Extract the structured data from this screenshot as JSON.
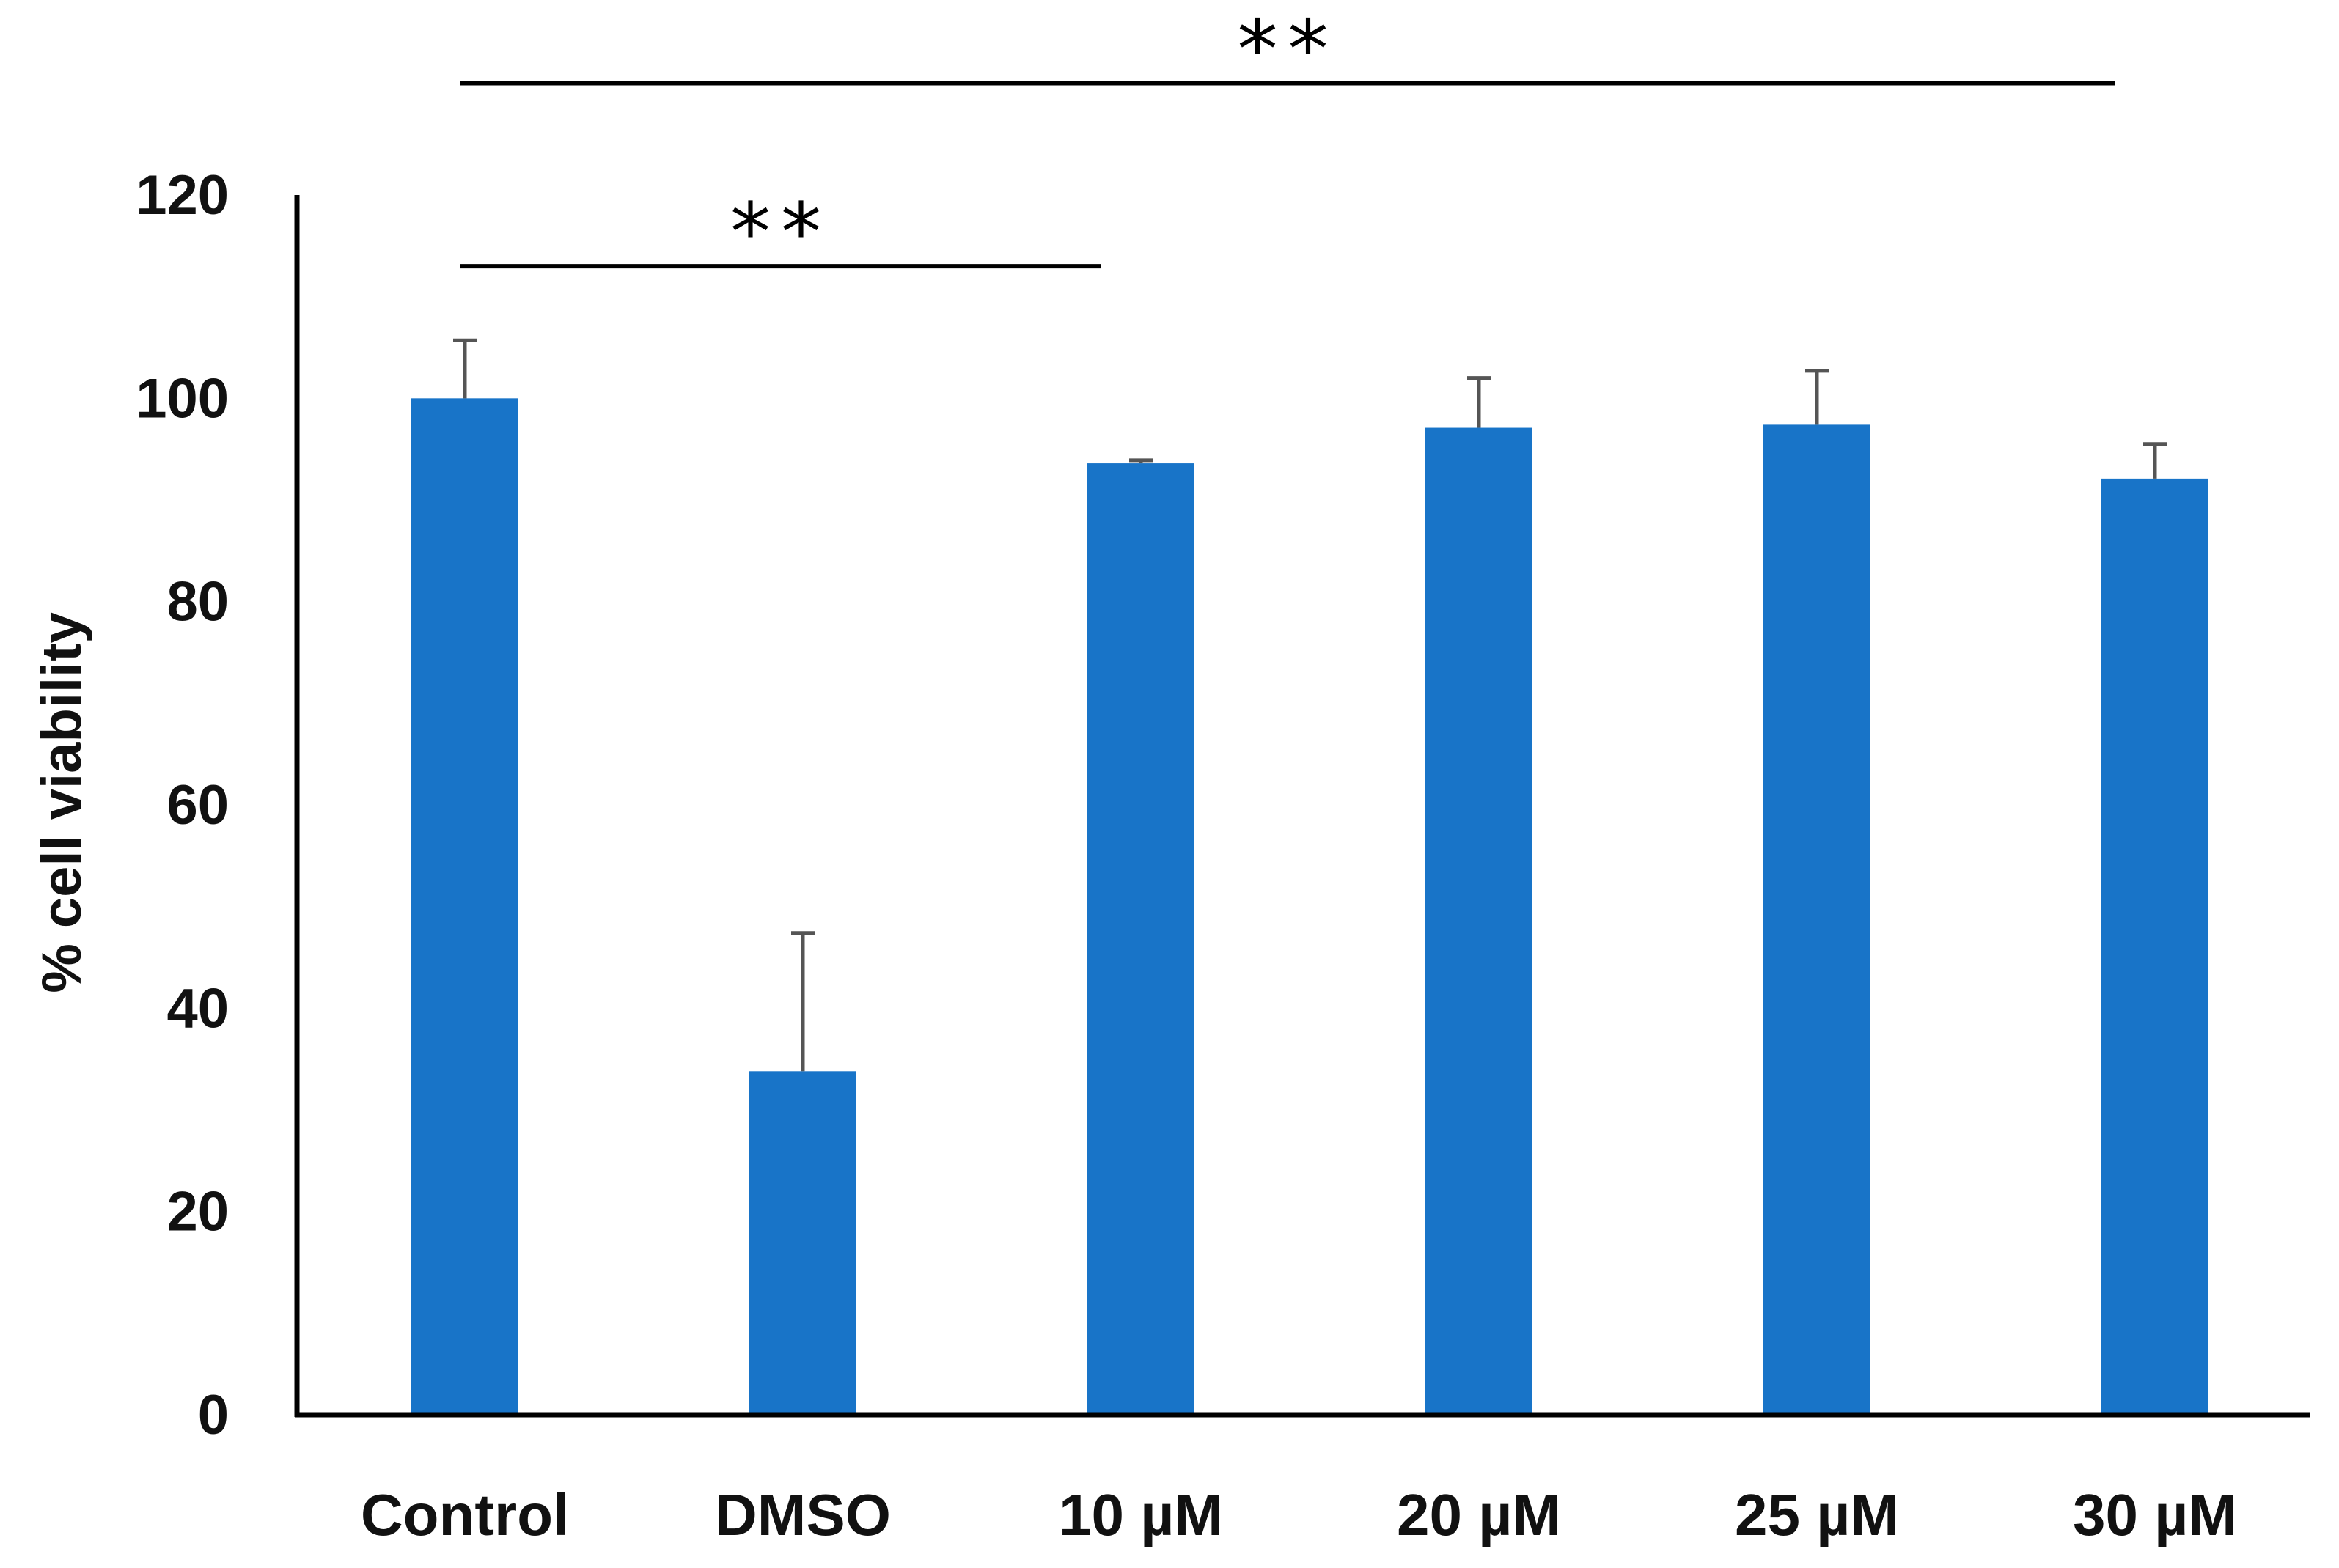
{
  "chart_data": {
    "type": "bar",
    "title": "",
    "xlabel": "",
    "ylabel": "% cell viability",
    "ylim": [
      0,
      120
    ],
    "yticks": [
      0,
      20,
      40,
      60,
      80,
      100,
      120
    ],
    "grid": false,
    "legend": "none",
    "categories": [
      "Control",
      "DMSO",
      "10 µM",
      "20 µM",
      "25 µM",
      "30 µM"
    ],
    "series": [
      {
        "name": "% cell viability",
        "values": [
          100,
          33.8,
          93.6,
          97.1,
          97.4,
          92.1
        ],
        "error_plus": [
          5.7,
          13.6,
          0.3,
          4.9,
          5.3,
          3.4
        ],
        "color": "#1874c8"
      }
    ],
    "annotations": [
      {
        "label": "**",
        "from_category": 0,
        "to_category": 2,
        "level_value": 113
      },
      {
        "label": "**",
        "from_category": 0,
        "to_category": 5,
        "level_value": 131
      }
    ]
  },
  "colors": {
    "bar": "#1874c8",
    "error_bar": "#555555",
    "axis": "#000000",
    "text": "#111111"
  }
}
